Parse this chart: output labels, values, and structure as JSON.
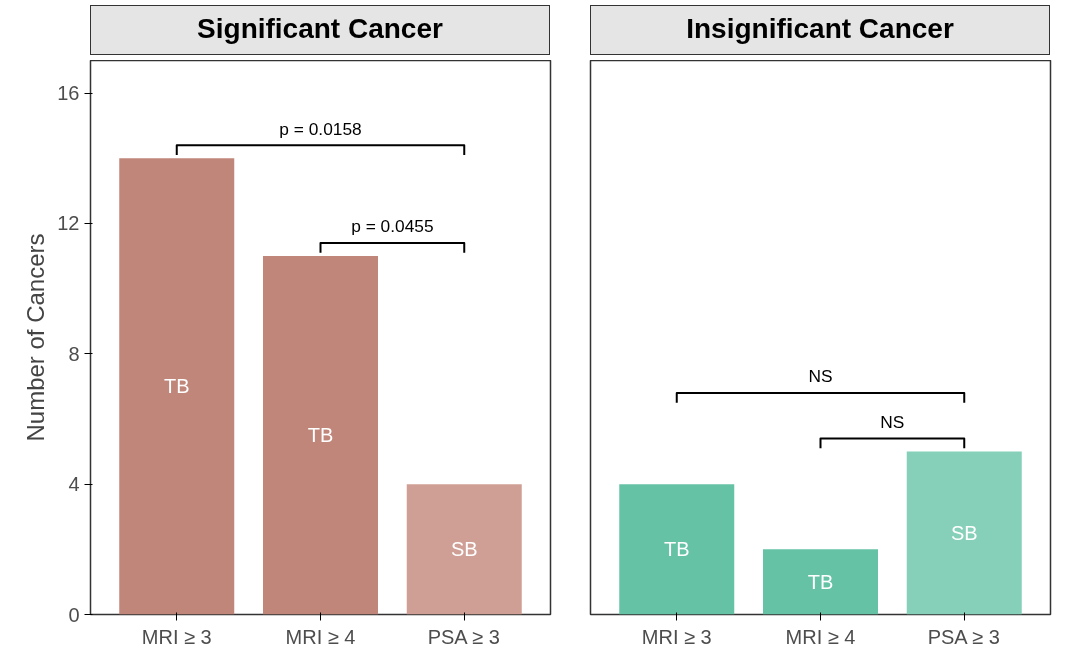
{
  "chart_data": [
    {
      "type": "bar",
      "title": "Significant Cancer",
      "ylabel": "Number of Cancers",
      "categories": [
        "MRI ≥ 3",
        "MRI ≥ 4",
        "PSA ≥ 3"
      ],
      "values": [
        14,
        11,
        4
      ],
      "colors": [
        "#c0867a",
        "#c0867a",
        "#cf9f95"
      ],
      "ylim": [
        0,
        17
      ],
      "yticks": [
        0,
        4,
        8,
        12,
        16
      ],
      "grid": false,
      "annotations": [
        "TB",
        "TB",
        "SB",
        "p = 0.0158",
        "p = 0.0455"
      ]
    },
    {
      "type": "bar",
      "title": "Insignificant Cancer",
      "categories": [
        "MRI ≥ 3",
        "MRI ≥ 4",
        "PSA ≥ 3"
      ],
      "values": [
        4,
        2,
        5
      ],
      "colors": [
        "#66c2a5",
        "#66c2a5",
        "#86cfb8"
      ],
      "ylim": [
        0,
        17
      ],
      "yticks": [
        0,
        4,
        8,
        12,
        16
      ],
      "grid": false,
      "tick_labels": "x",
      "annotations": [
        "TB",
        "TB",
        "SB",
        "NS",
        "NS"
      ]
    }
  ]
}
